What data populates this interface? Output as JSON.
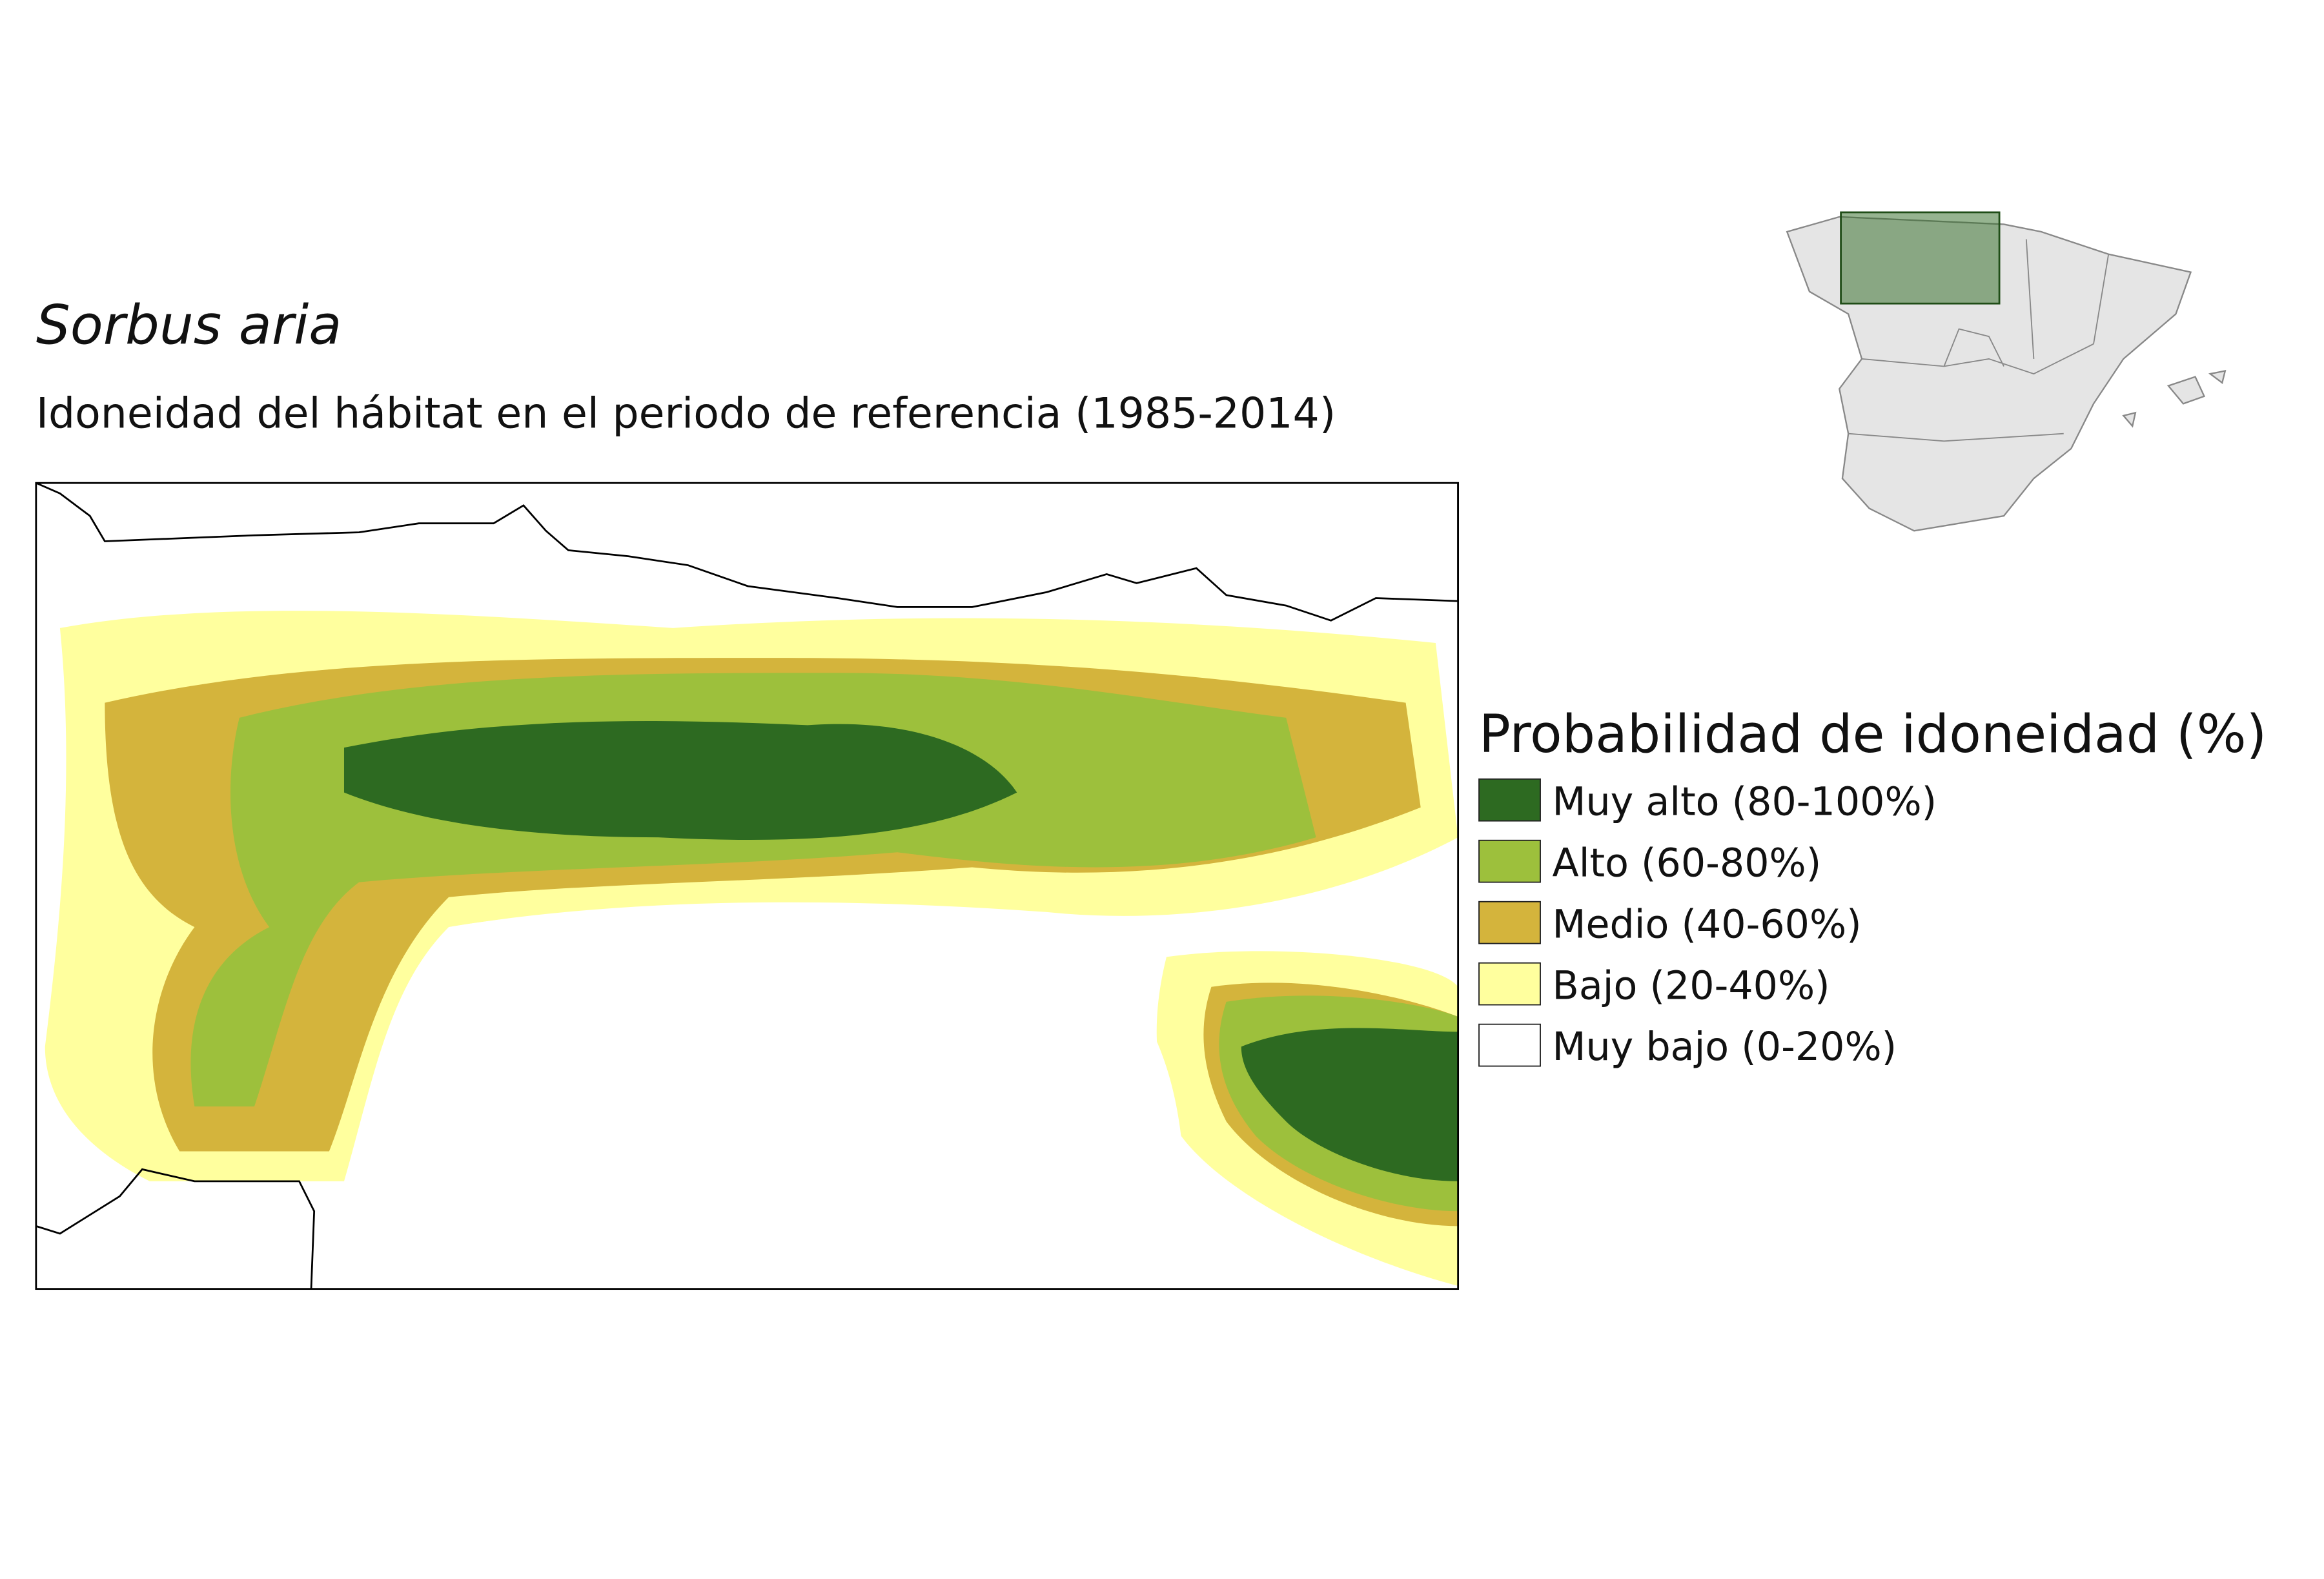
{
  "header": {
    "title": "Sorbus aria",
    "subtitle": "Idoneidad del hábitat en el periodo de referencia (1985-2014)"
  },
  "legend": {
    "title": "Probabilidad de idoneidad (%)",
    "items": [
      {
        "label": "Muy alto (80-100%)",
        "color": "#2d6a21"
      },
      {
        "label": "Alto (60-80%)",
        "color": "#9dc03c"
      },
      {
        "label": "Medio (40-60%)",
        "color": "#d4b43c"
      },
      {
        "label": "Bajo (20-40%)",
        "color": "#ffff9e"
      },
      {
        "label": "Muy bajo (0-20%)",
        "color": "#ffffff"
      }
    ]
  }
}
